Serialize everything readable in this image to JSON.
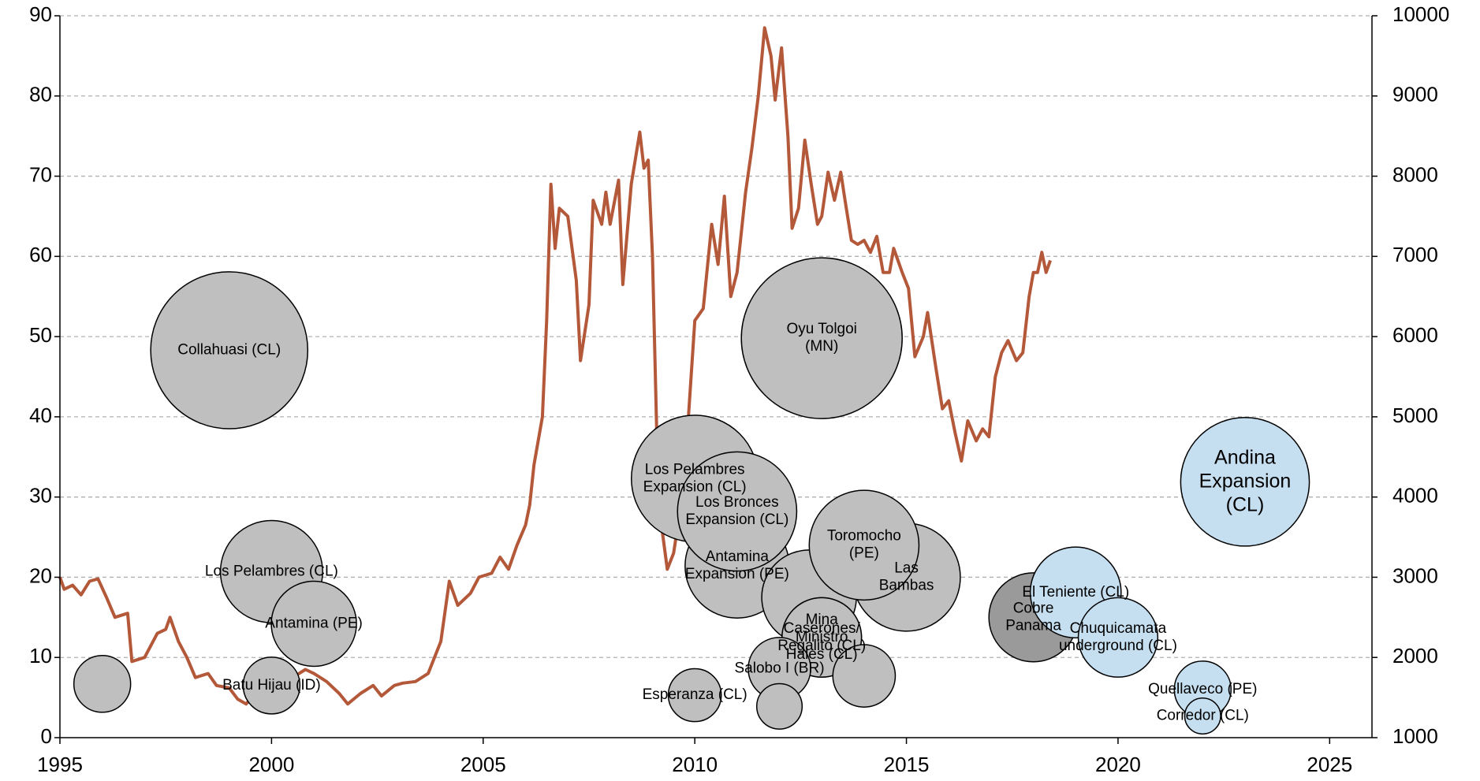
{
  "chart_data": {
    "type": "bubble",
    "xlim": [
      1995,
      2026
    ],
    "xticks": [
      1995,
      2000,
      2005,
      2010,
      2015,
      2020,
      2025
    ],
    "ylim": [
      0,
      90
    ],
    "yticks": [
      0,
      10,
      20,
      30,
      40,
      50,
      60,
      70,
      80,
      90
    ],
    "y2lim": [
      1000,
      10000
    ],
    "y2ticks": [
      1000,
      2000,
      3000,
      4000,
      5000,
      6000,
      7000,
      8000,
      9000,
      10000
    ],
    "grid": true,
    "bubbles": {
      "labels": [
        null,
        "Collahuasi (CL)",
        "Los Pelambres (CL)",
        "Antamina (PE)",
        "Batu Hijau (ID)",
        "Oyu Tolgoi\n(MN)",
        "Los Pelambres\nExpansion (CL)",
        "Antamina\nExpansion (PE)",
        "Los Bronces\nExpansion (CL)",
        null,
        "Las\nBambas",
        "Toromocho\n(PE)",
        "Caserones/\nRegalito (CL)",
        "Mina\nMinistro\nHales (CL)",
        null,
        "Salobo I (BR)",
        "Esperanza (CL)",
        null,
        "Cobre\nPanama",
        "Andina\nExpansion\n(CL)",
        "El Teniente (CL)",
        "Chuquicamata\nunderground (CL)",
        "Quellaveco (PE)",
        "Corredor (CL)"
      ],
      "x": [
        1996,
        1999,
        2000,
        2001,
        2000,
        2013,
        2010,
        2011,
        2011,
        2012.7,
        2015,
        2014,
        2013,
        2013,
        2014,
        2012,
        2010,
        2012,
        2018,
        2023,
        2019,
        2020,
        2022,
        2022
      ],
      "y": [
        6.7,
        48.3,
        20.7,
        14.2,
        6.5,
        49.8,
        32.3,
        21.4,
        28.2,
        17.5,
        20.0,
        24.0,
        12.5,
        12.5,
        7.7,
        8.6,
        5.3,
        3.9,
        15.0,
        31.9,
        18.1,
        12.5,
        6.0,
        2.7
      ],
      "sizes": [
        30,
        83,
        54,
        45,
        30,
        85,
        67,
        55,
        63,
        50,
        57,
        58,
        42,
        42,
        33,
        33,
        28,
        24,
        47,
        68,
        48,
        42,
        30,
        19
      ],
      "colors": [
        "#bfbfbf",
        "#bfbfbf",
        "#bfbfbf",
        "#bfbfbf",
        "#bfbfbf",
        "#bfbfbf",
        "#bfbfbf",
        "#bfbfbf",
        "#bfbfbf",
        "#bfbfbf",
        "#bfbfbf",
        "#bfbfbf",
        "#bfbfbf",
        "#bfbfbf",
        "#bfbfbf",
        "#bfbfbf",
        "#bfbfbf",
        "#bfbfbf",
        "#9a9a9a",
        "#c6dff0",
        "#c6dff0",
        "#c6dff0",
        "#c6dff0",
        "#c6dff0"
      ]
    },
    "line": {
      "axis": "y2",
      "color": "#b4583a",
      "x": [
        1995.0,
        1995.1,
        1995.3,
        1995.5,
        1995.7,
        1995.9,
        1996.1,
        1996.3,
        1996.6,
        1996.7,
        1997.0,
        1997.3,
        1997.5,
        1997.6,
        1997.8,
        1998.0,
        1998.2,
        1998.5,
        1998.7,
        1999.0,
        1999.2,
        1999.4,
        1999.6,
        1999.9,
        2000.2,
        2000.5,
        2000.8,
        2001.0,
        2001.3,
        2001.6,
        2001.8,
        2002.1,
        2002.4,
        2002.6,
        2002.9,
        2003.1,
        2003.4,
        2003.7,
        2004.0,
        2004.2,
        2004.4,
        2004.7,
        2004.9,
        2005.2,
        2005.4,
        2005.6,
        2005.8,
        2006.0,
        2006.1,
        2006.2,
        2006.4,
        2006.5,
        2006.6,
        2006.7,
        2006.8,
        2007.0,
        2007.2,
        2007.3,
        2007.5,
        2007.6,
        2007.8,
        2007.9,
        2008.0,
        2008.2,
        2008.3,
        2008.5,
        2008.7,
        2008.8,
        2008.9,
        2009.0,
        2009.1,
        2009.2,
        2009.35,
        2009.5,
        2009.7,
        2009.85,
        2010.0,
        2010.2,
        2010.4,
        2010.55,
        2010.7,
        2010.85,
        2011.0,
        2011.2,
        2011.35,
        2011.5,
        2011.65,
        2011.8,
        2011.9,
        2012.05,
        2012.2,
        2012.3,
        2012.45,
        2012.6,
        2012.75,
        2012.9,
        2013.0,
        2013.15,
        2013.3,
        2013.45,
        2013.55,
        2013.7,
        2013.85,
        2014.0,
        2014.15,
        2014.3,
        2014.45,
        2014.6,
        2014.7,
        2014.9,
        2015.05,
        2015.2,
        2015.4,
        2015.5,
        2015.7,
        2015.85,
        2016.0,
        2016.15,
        2016.3,
        2016.45,
        2016.65,
        2016.8,
        2016.95,
        2017.1,
        2017.25,
        2017.4,
        2017.6,
        2017.75,
        2017.9,
        2018.0,
        2018.1,
        2018.2,
        2018.3,
        2018.4
      ],
      "values": [
        3000,
        2850,
        2900,
        2780,
        2950,
        2980,
        2750,
        2500,
        2550,
        1950,
        2000,
        2300,
        2350,
        2500,
        2200,
        2000,
        1750,
        1800,
        1650,
        1620,
        1480,
        1420,
        1550,
        1650,
        1700,
        1750,
        1850,
        1800,
        1700,
        1550,
        1420,
        1550,
        1650,
        1520,
        1650,
        1680,
        1700,
        1800,
        2200,
        2950,
        2650,
        2800,
        3000,
        3050,
        3250,
        3100,
        3400,
        3650,
        3900,
        4400,
        5000,
        6200,
        7900,
        7100,
        7600,
        7500,
        6700,
        5700,
        6400,
        7700,
        7400,
        7800,
        7400,
        7950,
        6650,
        7900,
        8550,
        8100,
        8200,
        7000,
        4800,
        3700,
        3100,
        3300,
        4000,
        5000,
        6200,
        6350,
        7400,
        6900,
        7750,
        6500,
        6800,
        7800,
        8350,
        9000,
        9850,
        9500,
        8950,
        9600,
        8500,
        7350,
        7600,
        8450,
        7900,
        7400,
        7500,
        8050,
        7700,
        8050,
        7700,
        7200,
        7150,
        7200,
        7050,
        7250,
        6800,
        6800,
        7100,
        6800,
        6600,
        5750,
        6000,
        6300,
        5600,
        5100,
        5200,
        4800,
        4450,
        4950,
        4700,
        4850,
        4750,
        5500,
        5800,
        5950,
        5700,
        5800,
        6500,
        6800,
        6800,
        7050,
        6800,
        6950
      ]
    }
  }
}
